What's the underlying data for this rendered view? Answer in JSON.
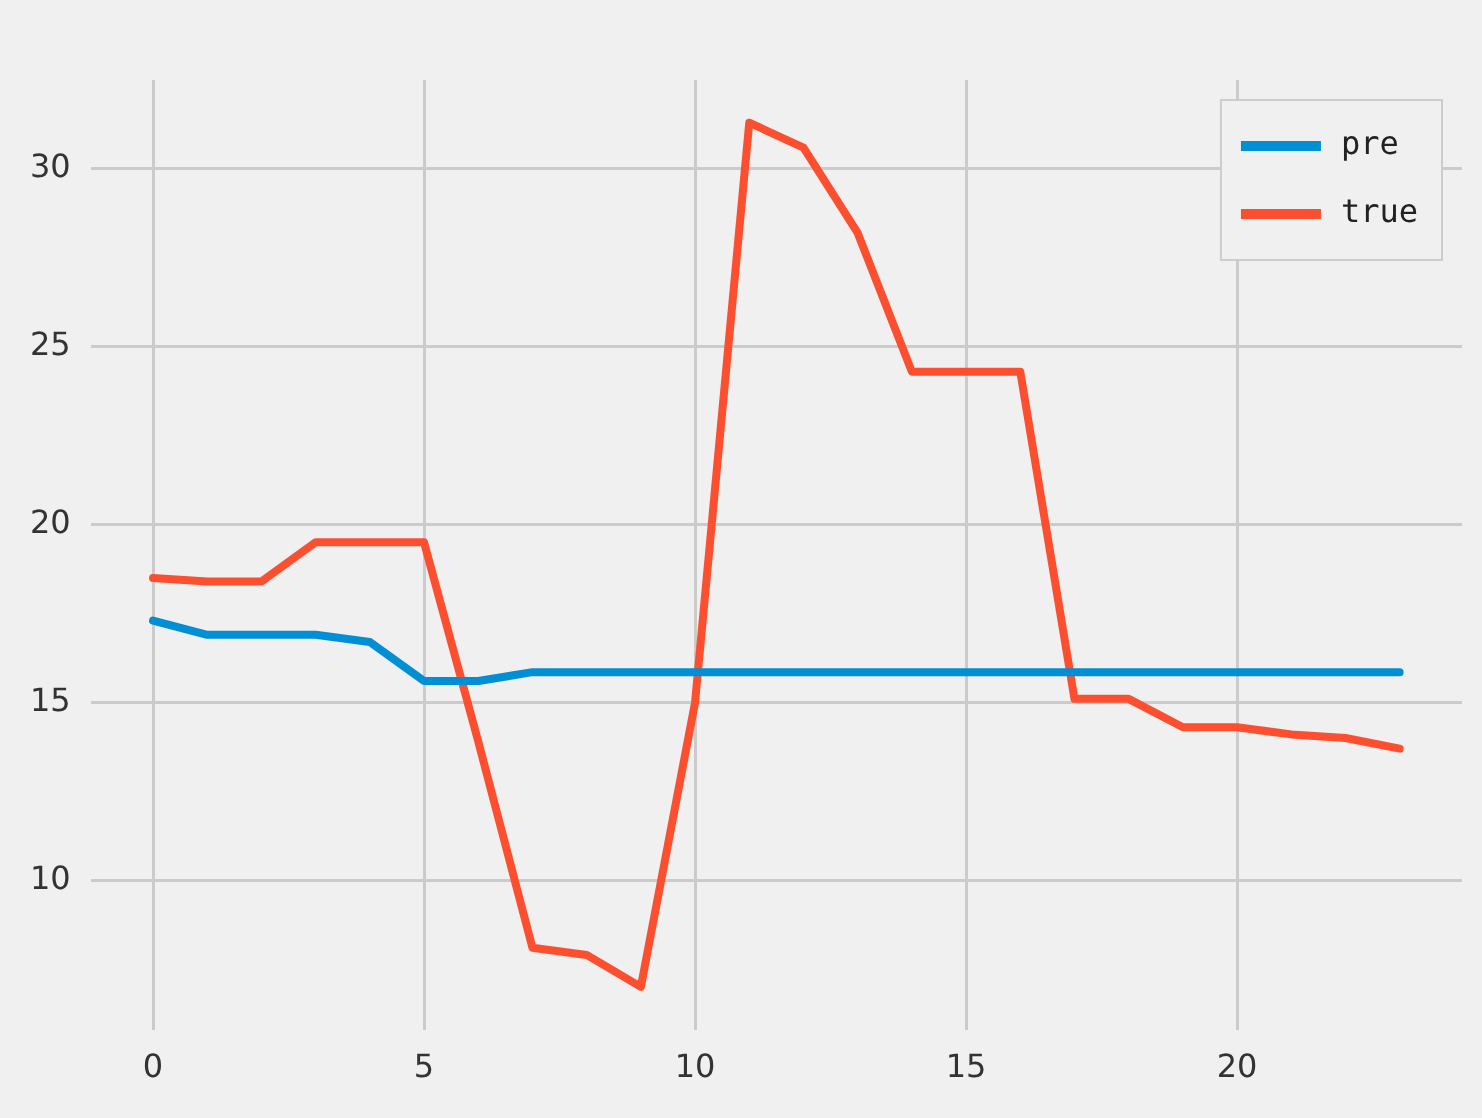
{
  "chart_data": {
    "type": "line",
    "x": [
      0,
      1,
      2,
      3,
      4,
      5,
      6,
      7,
      8,
      9,
      10,
      11,
      12,
      13,
      14,
      15,
      16,
      17,
      18,
      19,
      20,
      21,
      22,
      23
    ],
    "series": [
      {
        "name": "pre",
        "color": "#008fd5",
        "values": [
          17.3,
          16.9,
          16.9,
          16.9,
          16.7,
          15.6,
          15.6,
          15.85,
          15.85,
          15.85,
          15.85,
          15.85,
          15.85,
          15.85,
          15.85,
          15.85,
          15.85,
          15.85,
          15.85,
          15.85,
          15.85,
          15.85,
          15.85,
          15.85
        ]
      },
      {
        "name": "true",
        "color": "#fc4f30",
        "values": [
          18.5,
          18.4,
          18.4,
          19.5,
          19.5,
          19.5,
          13.9,
          8.1,
          7.9,
          7.0,
          15.0,
          31.3,
          30.6,
          28.2,
          24.3,
          24.3,
          24.3,
          15.1,
          15.1,
          14.3,
          14.3,
          14.1,
          14.0,
          13.7
        ]
      }
    ],
    "xlim": [
      -1.15,
      24.15
    ],
    "ylim": [
      5.8,
      32.5
    ],
    "xticks": [
      0,
      5,
      10,
      15,
      20
    ],
    "yticks": [
      10,
      15,
      20,
      25,
      30
    ],
    "grid": true,
    "legend": "top right",
    "marker": "none",
    "line_style": "solid"
  }
}
